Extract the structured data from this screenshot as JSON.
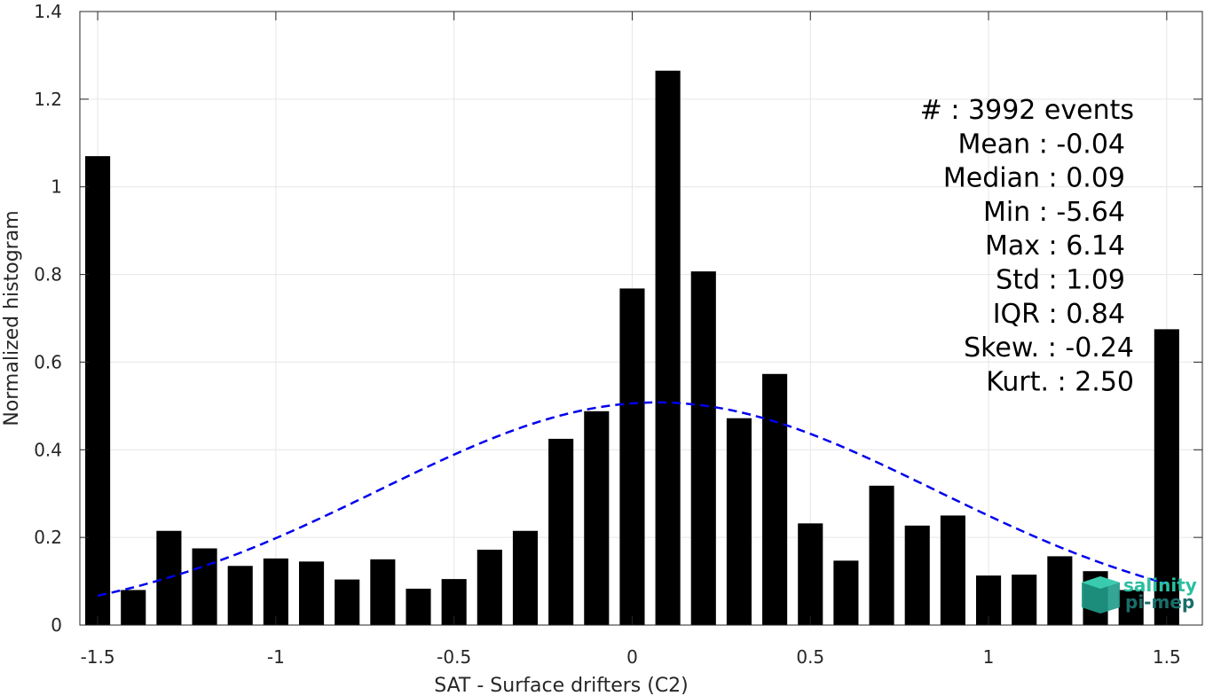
{
  "chart_data": {
    "type": "bar",
    "xlabel": "SAT - Surface drifters (C2)",
    "ylabel": "Normalized histogram",
    "xlim": [
      -1.55,
      1.6
    ],
    "ylim": [
      0,
      1.4
    ],
    "xticks": [
      -1.5,
      -1,
      -0.5,
      0,
      0.5,
      1,
      1.5
    ],
    "xtick_labels": [
      "-1.5",
      "-1",
      "-0.5",
      "0",
      "0.5",
      "1",
      "1.5"
    ],
    "yticks": [
      0,
      0.2,
      0.4,
      0.6,
      0.8,
      1,
      1.2,
      1.4
    ],
    "ytick_labels": [
      "0",
      "0.2",
      "0.4",
      "0.6",
      "0.8",
      "1",
      "1.2",
      "1.4"
    ],
    "grid": true,
    "bin_width": 0.1,
    "x": [
      -1.5,
      -1.4,
      -1.3,
      -1.2,
      -1.1,
      -1.0,
      -0.9,
      -0.8,
      -0.7,
      -0.6,
      -0.5,
      -0.4,
      -0.3,
      -0.2,
      -0.1,
      0.0,
      0.1,
      0.2,
      0.3,
      0.4,
      0.5,
      0.6,
      0.7,
      0.8,
      0.9,
      1.0,
      1.1,
      1.2,
      1.3,
      1.4,
      1.5
    ],
    "values": [
      1.07,
      0.08,
      0.215,
      0.175,
      0.135,
      0.152,
      0.145,
      0.104,
      0.15,
      0.083,
      0.105,
      0.172,
      0.215,
      0.425,
      0.488,
      0.768,
      1.265,
      0.807,
      0.472,
      0.573,
      0.232,
      0.147,
      0.318,
      0.227,
      0.25,
      0.113,
      0.115,
      0.157,
      0.123,
      0.08,
      0.675
    ],
    "bar_color": "#000000",
    "fit_curve": {
      "style": "dashed",
      "color": "#0000ee",
      "mean": 0.07,
      "std": 0.78,
      "peak": 0.508,
      "x_range": [
        -1.5,
        1.5
      ]
    },
    "stats_lines": [
      "#  : 3992 events",
      "Mean : -0.04",
      "Median : 0.09",
      "Min : -5.64",
      "Max : 6.14",
      "Std : 1.09",
      "IQR : 0.84",
      "Skew. : -0.24",
      "Kurt. : 2.50"
    ],
    "logo": {
      "line1": "salinity",
      "line2": "pi-mep",
      "color1": "#2bbfa0",
      "color2": "#1a6e6a"
    }
  }
}
